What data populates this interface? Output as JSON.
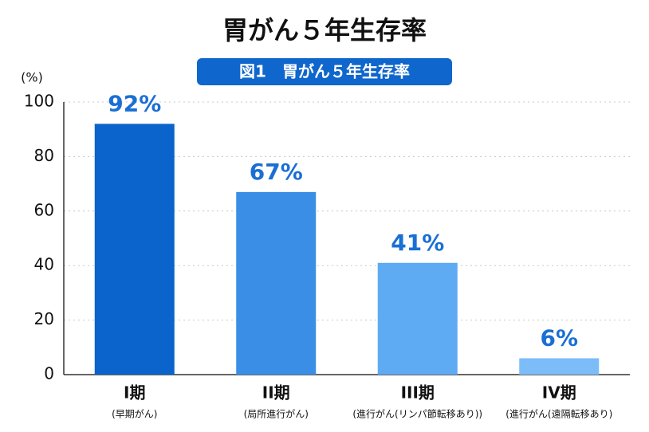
{
  "chart_data": {
    "type": "bar",
    "title": "胃がん５年生存率",
    "subtitle": "図1　胃がん５年生存率",
    "y_label": "(%)",
    "categories": [
      "I期",
      "II期",
      "III期",
      "IV期"
    ],
    "category_notes": [
      "(早期がん)",
      "(局所進行がん)",
      "(進行がん(リンパ節転移あり))",
      "(進行がん(遠隔転移あり)"
    ],
    "values": [
      92,
      67,
      41,
      6
    ],
    "value_labels": [
      "92%",
      "67%",
      "41%",
      "6%"
    ],
    "colors": [
      "#0b63cc",
      "#3a8ee6",
      "#5eaaf3",
      "#7cbcf8"
    ],
    "ylim": [
      0,
      100
    ],
    "yticks": [
      0,
      20,
      40,
      60,
      80,
      100
    ],
    "grid": true
  }
}
